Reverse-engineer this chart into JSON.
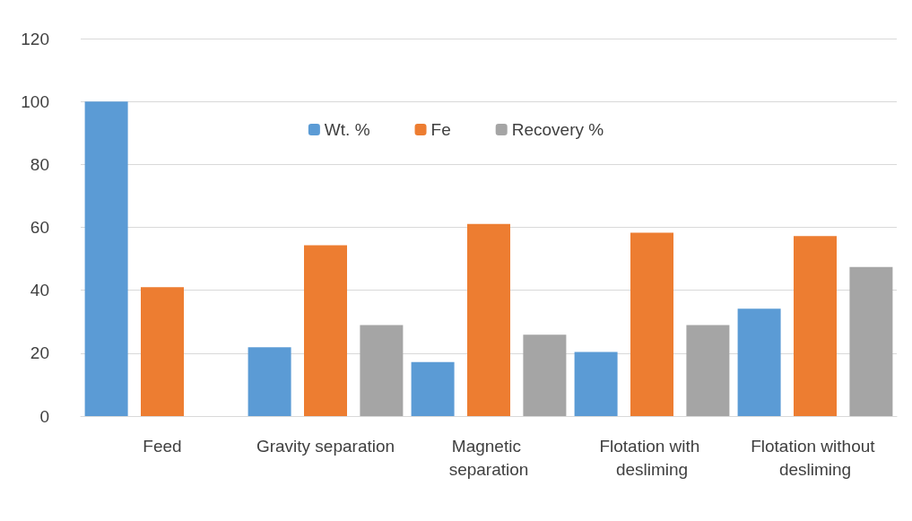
{
  "chart_data": {
    "type": "bar",
    "categories": [
      "Feed",
      "Gravity separation",
      "Magnetic separation",
      "Flotation with desliming",
      "Flotation without desliming"
    ],
    "series": [
      {
        "name": "Wt. %",
        "color": "#5b9bd5",
        "values": [
          100,
          21.9,
          17.2,
          20.4,
          34.1
        ]
      },
      {
        "name": "Fe",
        "color": "#ed7d31",
        "values": [
          41,
          54.3,
          61.1,
          58.3,
          57.2
        ]
      },
      {
        "name": "Recovery %",
        "color": "#a5a5a5",
        "values": [
          null,
          28.9,
          25.9,
          28.9,
          47.4
        ]
      }
    ],
    "ylim": [
      0,
      120
    ],
    "yticks": [
      0,
      20,
      40,
      60,
      80,
      100,
      120
    ],
    "grid": "y",
    "legend": "top"
  }
}
